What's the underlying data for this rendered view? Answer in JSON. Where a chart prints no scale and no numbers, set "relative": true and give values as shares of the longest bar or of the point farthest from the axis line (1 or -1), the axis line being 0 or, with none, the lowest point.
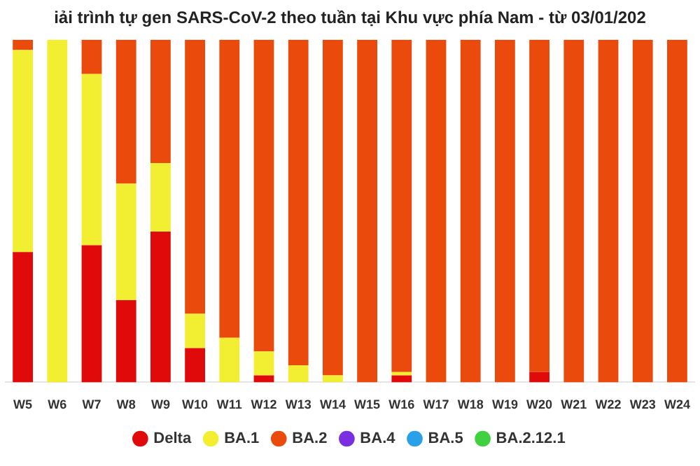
{
  "chart_data": {
    "type": "bar",
    "title": "iải trình tự gen SARS-CoV-2 theo tuần tại Khu vực phía Nam - từ 03/01/202",
    "stacked": true,
    "relative": true,
    "legend": "bottom",
    "categories": [
      "W5",
      "W6",
      "W7",
      "W8",
      "W9",
      "W10",
      "W11",
      "W12",
      "W13",
      "W14",
      "W15",
      "W16",
      "W17",
      "W18",
      "W19",
      "W20",
      "W21",
      "W22",
      "W23",
      "W24"
    ],
    "series": [
      {
        "name": "Delta",
        "color": "#e00a0a",
        "values": [
          0.38,
          0,
          0.4,
          0.24,
          0.44,
          0.1,
          0,
          0.02,
          0,
          0,
          0,
          0.02,
          0,
          0,
          0,
          0.03,
          0,
          0,
          0,
          0
        ]
      },
      {
        "name": "BA.1",
        "color": "#f2ee32",
        "values": [
          0.59,
          1,
          0.5,
          0.34,
          0.2,
          0.1,
          0.13,
          0.07,
          0.05,
          0.02,
          0,
          0.01,
          0,
          0,
          0,
          0,
          0,
          0,
          0,
          0
        ]
      },
      {
        "name": "BA.2",
        "color": "#ea4a0c",
        "values": [
          0.03,
          0,
          0.1,
          0.42,
          0.36,
          0.8,
          0.87,
          0.91,
          0.95,
          0.98,
          1,
          0.97,
          1,
          1,
          1,
          0.97,
          1,
          1,
          1,
          1
        ]
      },
      {
        "name": "BA.4",
        "color": "#7a30e0",
        "values": [
          0,
          0,
          0,
          0,
          0,
          0,
          0,
          0,
          0,
          0,
          0,
          0,
          0,
          0,
          0,
          0,
          0,
          0,
          0,
          0
        ]
      },
      {
        "name": "BA.5",
        "color": "#2aa0e8",
        "values": [
          0,
          0,
          0,
          0,
          0,
          0,
          0,
          0,
          0,
          0,
          0,
          0,
          0,
          0,
          0,
          0,
          0,
          0,
          0,
          0
        ]
      },
      {
        "name": "BA.2.12.1",
        "color": "#40d040",
        "values": [
          0,
          0,
          0,
          0,
          0,
          0,
          0,
          0,
          0,
          0,
          0,
          0,
          0,
          0,
          0,
          0,
          0,
          0,
          0,
          0
        ]
      }
    ]
  }
}
